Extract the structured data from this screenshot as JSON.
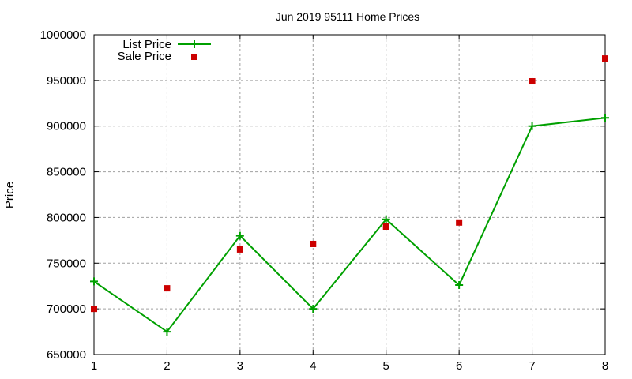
{
  "chart_data": {
    "type": "line",
    "title": "Jun 2019 95111 Home Prices",
    "xlabel": "",
    "ylabel": "Price",
    "x": [
      1,
      2,
      3,
      4,
      5,
      6,
      7,
      8
    ],
    "xlim": [
      1,
      8
    ],
    "ylim": [
      650000,
      1000000
    ],
    "xticks": [
      "1",
      "2",
      "3",
      "4",
      "5",
      "6",
      "7",
      "8"
    ],
    "yticks": [
      "650000",
      "700000",
      "750000",
      "800000",
      "850000",
      "900000",
      "950000",
      "1000000"
    ],
    "grid": true,
    "legend_position": "top-left",
    "series": [
      {
        "name": "List Price",
        "style": "linespoints",
        "marker": "plus",
        "color": "#00a000",
        "values": [
          730000,
          675000,
          780000,
          700000,
          798000,
          726000,
          900000,
          909000
        ]
      },
      {
        "name": "Sale Price",
        "style": "points",
        "marker": "square",
        "color": "#cc0000",
        "values": [
          700000,
          722500,
          765000,
          771000,
          790000,
          794500,
          949000,
          974000
        ]
      }
    ]
  }
}
